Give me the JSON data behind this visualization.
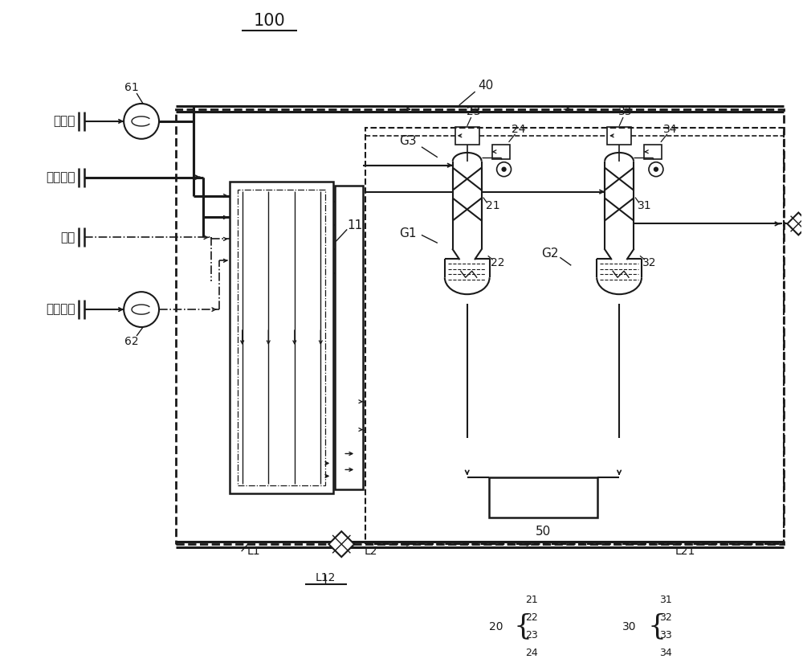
{
  "bg_color": "#ffffff",
  "lc": "#1a1a1a",
  "title": "100",
  "labels_left": [
    "粗氖气",
    "原料气体",
    "氮气",
    "高纯氖气"
  ],
  "label_61": "61",
  "label_62": "62",
  "label_40": "40",
  "label_11": "11",
  "label_G1": "G1",
  "label_G2": "G2",
  "label_G3": "G3",
  "label_21": "21",
  "label_22": "22",
  "label_23": "23",
  "label_24": "24",
  "label_31": "31",
  "label_32": "32",
  "label_33": "33",
  "label_34": "34",
  "label_50": "50",
  "label_L1": "L1",
  "label_L2": "L2",
  "label_L12": "L12",
  "label_L21": "L21",
  "label_20": "20",
  "label_30": "30",
  "bracket_left": [
    "21",
    "22",
    "23",
    "24"
  ],
  "bracket_right": [
    "31",
    "32",
    "33",
    "34"
  ]
}
